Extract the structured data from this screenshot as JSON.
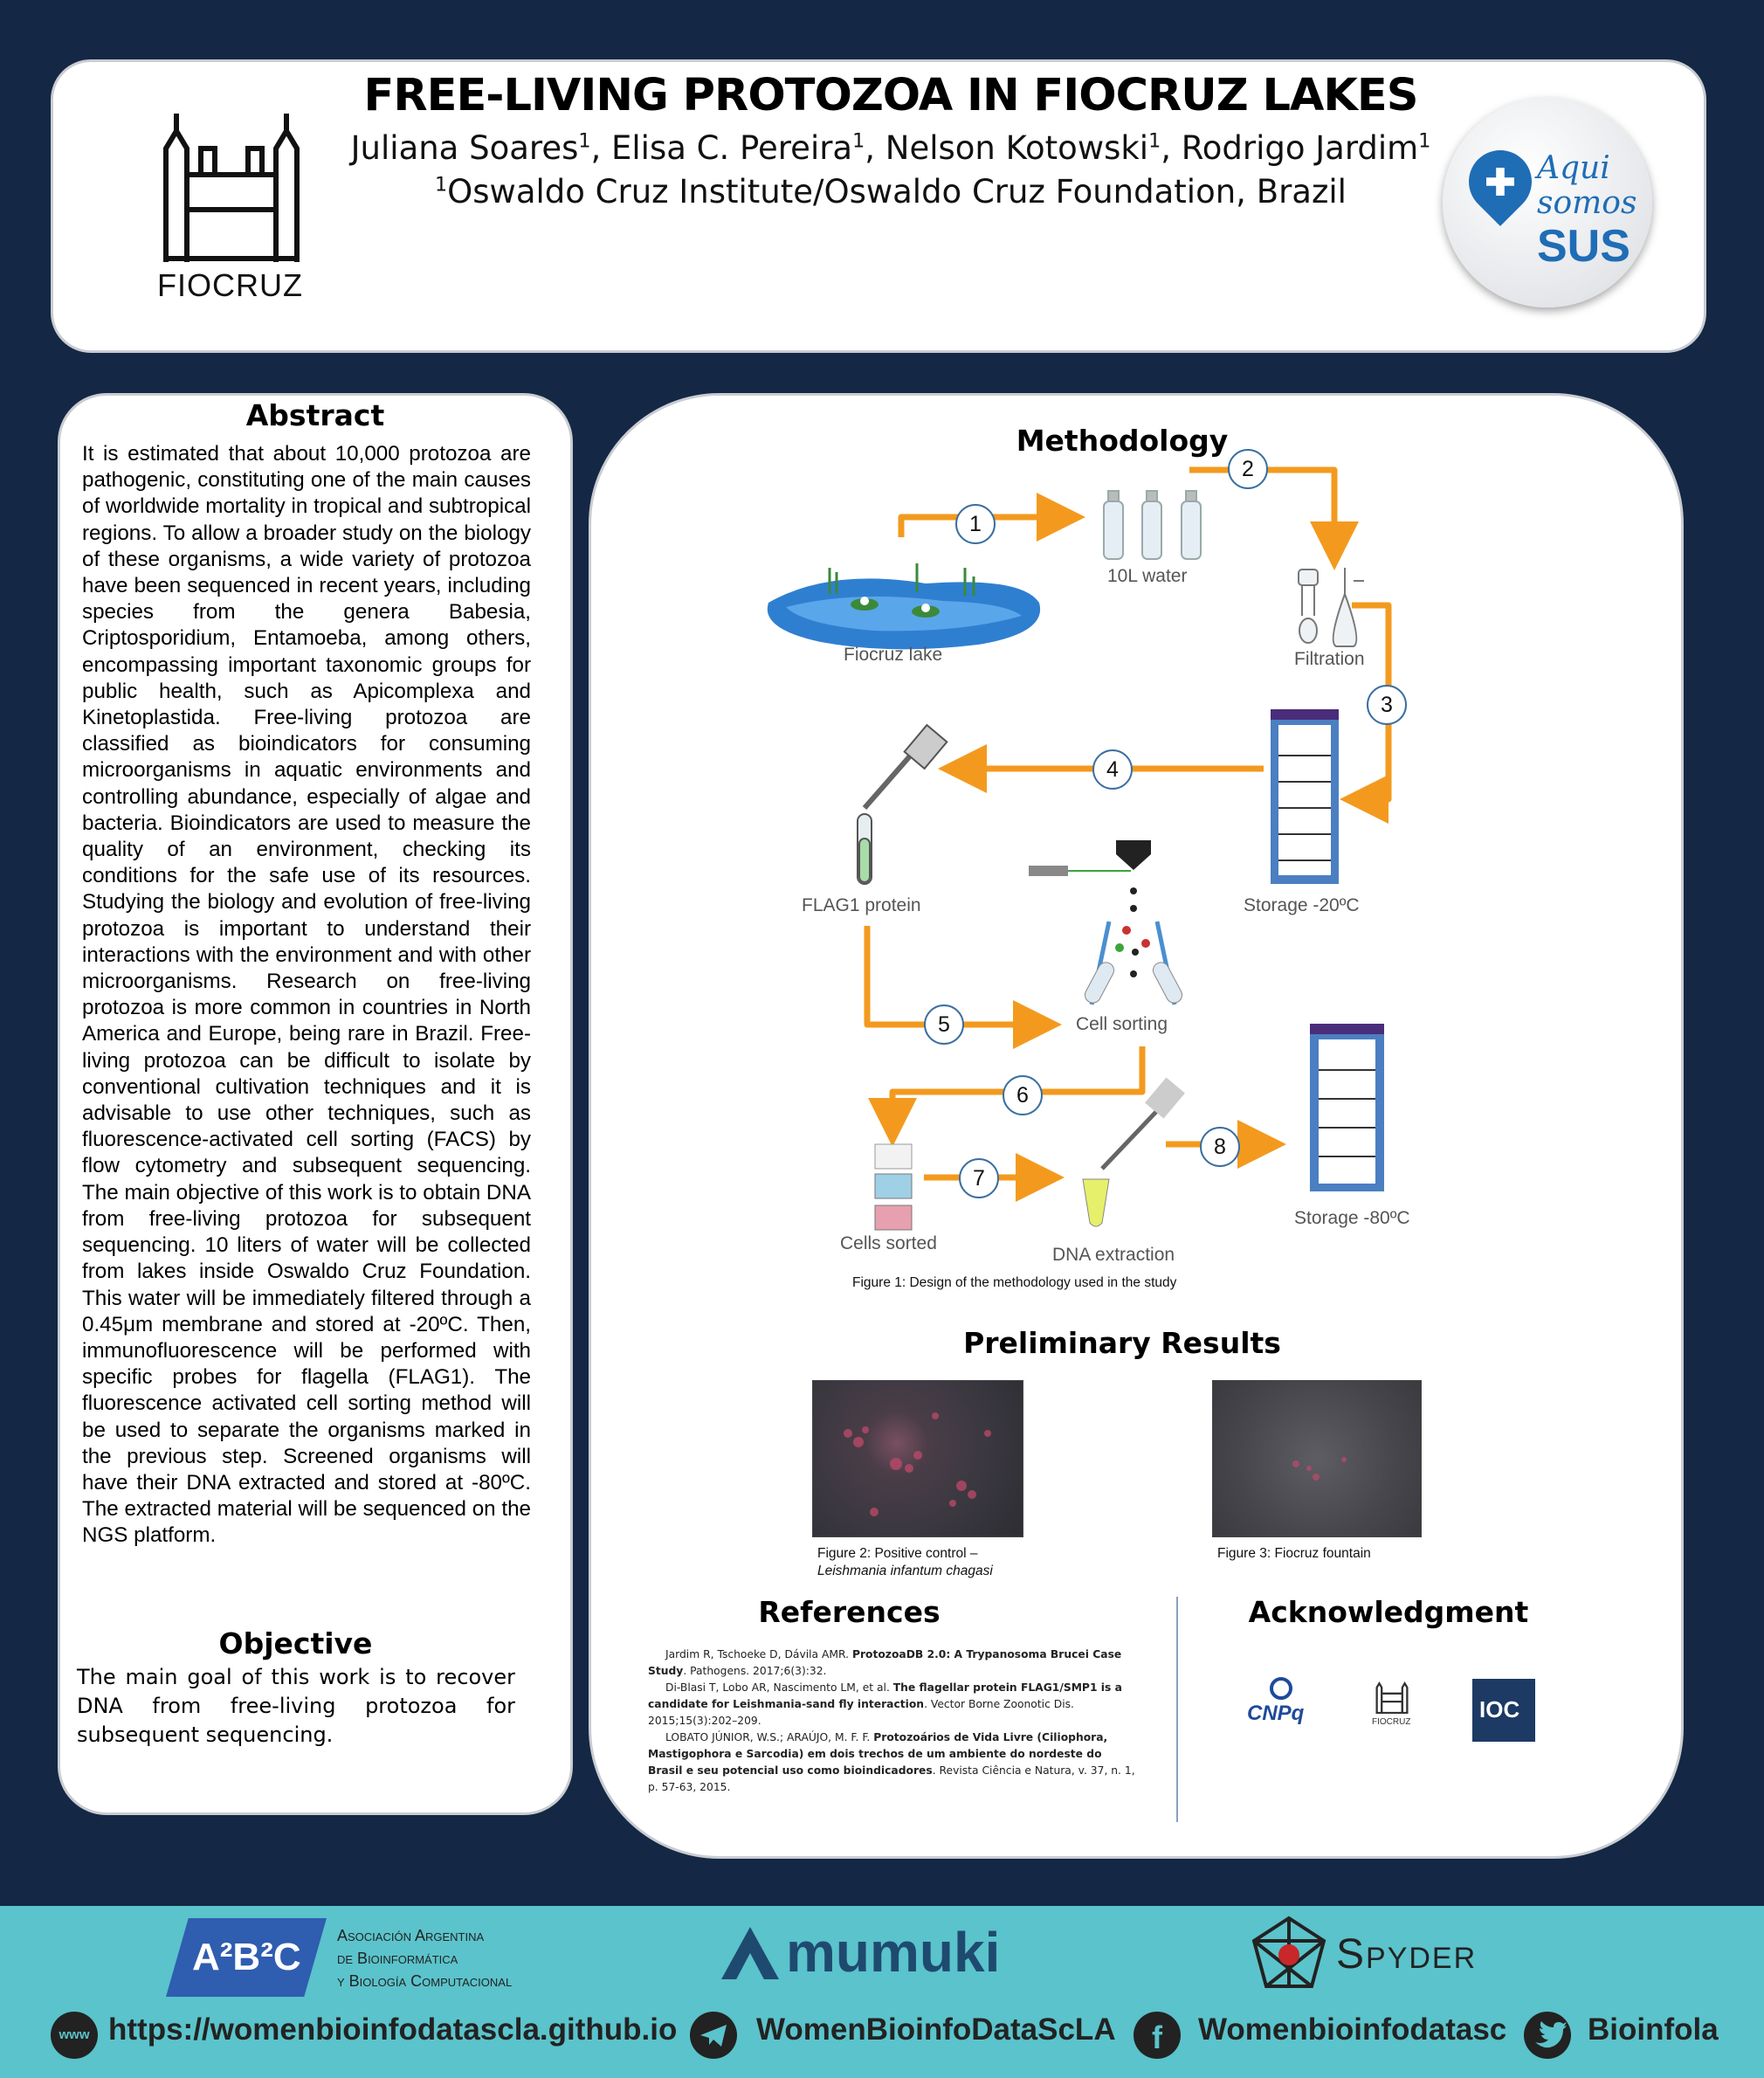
{
  "header": {
    "title": "FREE-LIVING PROTOZOA IN FIOCRUZ LAKES",
    "authors": [
      {
        "name": "Juliana Soares",
        "aff": "1"
      },
      {
        "name": "Elisa C. Pereira",
        "aff": "1"
      },
      {
        "name": "Nelson Kotowski",
        "aff": "1"
      },
      {
        "name": "Rodrigo Jardim",
        "aff": "1"
      }
    ],
    "affiliation_mark": "1",
    "affiliation": "Oswaldo Cruz Institute/Oswaldo Cruz Foundation, Brazil",
    "left_logo_text": "FIOCRUZ",
    "right_logo": {
      "line1": "Aqui",
      "line2": "somos",
      "line3": "SUS"
    }
  },
  "abstract": {
    "heading": "Abstract",
    "body": "It is estimated that about 10,000 protozoa are pathogenic, constituting one of the main causes of worldwide mortality in tropical and subtropical regions. To allow a broader study on the biology of these organisms, a wide variety of protozoa have been sequenced in recent years, including species from the genera Babesia, Criptosporidium, Entamoeba, among others, encompassing important taxonomic groups for public health, such as Apicomplexa and Kinetoplastida. Free-living protozoa are classified as bioindicators for consuming microorganisms in aquatic environments and controlling abundance, especially of algae and bacteria. Bioindicators are used to measure the quality of an environment, checking its conditions for the safe use of its resources. Studying the biology and evolution of free-living protozoa is important to understand their interactions with the environment and with other microorganisms. Research on free-living protozoa is more common in countries in North America and Europe, being rare in Brazil. Free-living protozoa can be difficult to isolate by conventional cultivation techniques and it is advisable to use other techniques, such as fluorescence-activated cell sorting (FACS) by flow cytometry and subsequent sequencing. The main objective of this work is to obtain DNA from free-living protozoa for subsequent sequencing. 10 liters of water will be collected from lakes inside Oswaldo Cruz Foundation. This water will be immediately filtered through a 0.45μm membrane and stored at -20ºC. Then, immunofluorescence will be performed with specific probes for flagella (FLAG1). The fluorescence activated cell sorting method will be used to separate the organisms marked in the previous step. Screened organisms will have their DNA extracted and stored at -80ºC. The extracted material will be sequenced on the NGS platform."
  },
  "objective": {
    "heading": "Objective",
    "body": "The main goal of this work is to recover DNA from free-living protozoa for subsequent sequencing."
  },
  "methodology": {
    "heading": "Methodology",
    "labels": {
      "lake": "Fiocruz lake",
      "water": "10L water",
      "filtration": "Filtration",
      "storage20": "Storage -20ºC",
      "flag1": "FLAG1 protein",
      "sorting": "Cell sorting",
      "cells_sorted": "Cells sorted",
      "dna": "DNA extraction",
      "storage80": "Storage -80ºC"
    },
    "steps": [
      "1",
      "2",
      "3",
      "4",
      "5",
      "6",
      "7",
      "8"
    ],
    "caption": "Figure 1: Design of the methodology used in the study"
  },
  "results": {
    "heading": "Preliminary Results",
    "fig2_caption": "Figure 2: Positive control –",
    "fig2_species": "Leishmania infantum chagasi",
    "fig3_caption": "Figure 3: Fiocruz fountain"
  },
  "references": {
    "heading": "References",
    "items": [
      {
        "authors": "Jardim R, Tschoeke D, Dávila AMR. ",
        "title": "ProtozoaDB 2.0: A Trypanosoma Brucei Case Study",
        "rest": ". Pathogens. 2017;6(3):32."
      },
      {
        "authors": "Di-Blasi T, Lobo AR, Nascimento LM, et al. ",
        "title": "The flagellar protein FLAG1/SMP1 is a candidate for Leishmania-sand fly interaction",
        "rest": ". Vector Borne Zoonotic Dis. 2015;15(3):202–209."
      },
      {
        "authors": "LOBATO JÚNIOR, W.S.; ARAÚJO, M. F. F. ",
        "title": "Protozoários de Vida Livre (Ciliophora, Mastigophora e Sarcodia) em dois trechos de um ambiente do nordeste do Brasil e seu potencial uso como bioindicadores",
        "rest": ". Revista Ciência e Natura, v. 37, n. 1, p. 57-63, 2015."
      }
    ]
  },
  "acknowledgment": {
    "heading": "Acknowledgment",
    "logos": {
      "cnpq": "CNPq",
      "fiocruz": "FIOCRUZ",
      "ioc": "IOC"
    }
  },
  "footer": {
    "a2b2c": {
      "mark": "A²B²C",
      "line1": "Asociación Argentina",
      "line2": "de Bioinformática",
      "line3": "y Biología Computacional"
    },
    "mumuki": "mumuki",
    "spyder": "Spyder",
    "www_icon": "www",
    "website": "https://womenbioinfodatascla.github.io",
    "telegram": "WomenBioinfoDataScLA",
    "facebook": "Womenbioinfodatasc",
    "twitter": "Bioinfola"
  },
  "colors": {
    "background": "#142744",
    "footer": "#5bc3cb",
    "arrow": "#f39a1e",
    "circle_border": "#3a6fa0"
  }
}
